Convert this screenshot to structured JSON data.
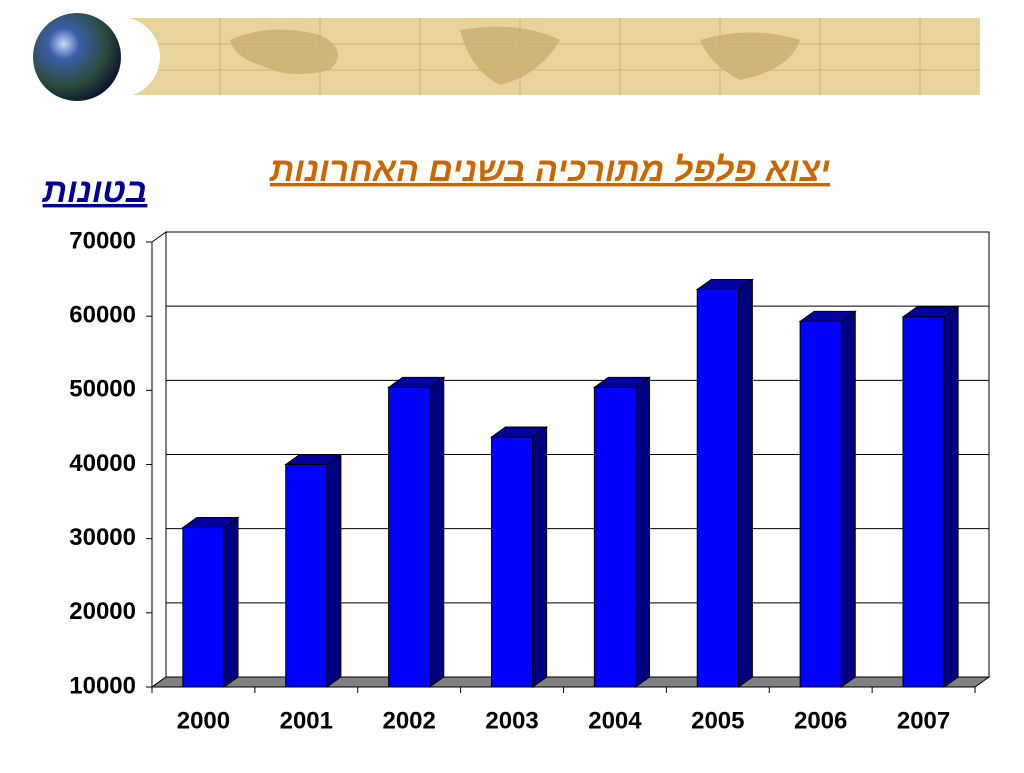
{
  "chart_data": {
    "type": "bar3d",
    "title": "יצוא פלפל מתורכיה בשנים האחרונות",
    "y_label": "בטונות",
    "categories": [
      "2000",
      "2001",
      "2002",
      "2003",
      "2004",
      "2005",
      "2006",
      "2007"
    ],
    "values": [
      31500,
      40000,
      50400,
      43700,
      50400,
      63600,
      59300,
      59900
    ],
    "color": "#0000ff",
    "ylim": [
      10000,
      70000
    ],
    "yticks": [
      10000,
      20000,
      30000,
      40000,
      50000,
      60000,
      70000
    ],
    "grid": true
  }
}
